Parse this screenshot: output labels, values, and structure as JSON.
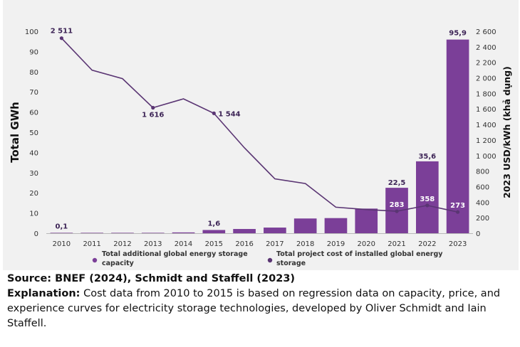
{
  "chart_data": {
    "type": "bar+line",
    "categories": [
      "2010",
      "2011",
      "2012",
      "2013",
      "2014",
      "2015",
      "2016",
      "2017",
      "2018",
      "2019",
      "2020",
      "2021",
      "2022",
      "2023"
    ],
    "series": [
      {
        "name": "Total additional global energy storage capacity",
        "axis": "left",
        "kind": "bar",
        "values": [
          0.1,
          0.1,
          0.2,
          0.2,
          0.4,
          1.6,
          2.1,
          2.8,
          7.3,
          7.5,
          12.2,
          22.5,
          35.6,
          95.9
        ],
        "labels": {
          "2010": "0,1",
          "2015": "1,6",
          "2021": "22,5",
          "2022": "35,6",
          "2023": "95,9"
        }
      },
      {
        "name": "Total project cost of installed global energy storage",
        "axis": "right",
        "kind": "line",
        "values": [
          2511,
          2100,
          1990,
          1616,
          1730,
          1544,
          1100,
          700,
          640,
          335,
          305,
          283,
          358,
          273
        ],
        "labels": {
          "2010": "2 511",
          "2013": "1 616",
          "2015": "1 544",
          "2021": "283",
          "2022": "358",
          "2023": "273"
        }
      }
    ],
    "ylabel": "Total GWh",
    "y2label": "2023 USD/kWh (khả dụng)",
    "ylim": [
      0,
      100
    ],
    "y2lim": [
      0,
      2600
    ],
    "yticks": [
      "0",
      "10",
      "20",
      "30",
      "40",
      "50",
      "60",
      "70",
      "80",
      "90",
      "100"
    ],
    "y2ticks": [
      "0",
      "200",
      "400",
      "600",
      "800",
      "1 000",
      "1 200",
      "1 400",
      "1 600",
      "1 800",
      "2 000",
      "2 200",
      "2 400",
      "2 600"
    ],
    "legend": {
      "bar": [
        "Total additional global energy storage",
        "capacity"
      ],
      "line": [
        "Total project cost of installed global energy",
        "storage"
      ]
    },
    "colors": {
      "bar": "#7b3f98",
      "line": "#5a3573",
      "background": "#f1f1f1"
    }
  },
  "caption": {
    "source": "Source: BNEF (2024), Schmidt and Staffell (2023)",
    "explanation_label": "Explanation:",
    "explanation_text": " Cost data from 2010 to 2015 is based on regression data on capacity, price, and experience curves for electricity storage technologies, developed by Oliver Schmidt and Iain Staffell."
  }
}
